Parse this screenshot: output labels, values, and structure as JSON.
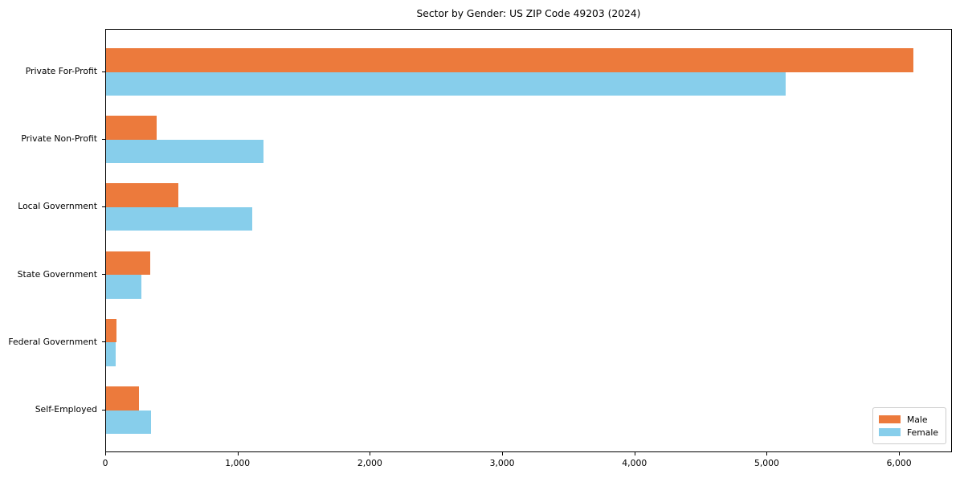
{
  "chart_data": {
    "type": "bar",
    "orientation": "horizontal",
    "title": "Sector by Gender: US ZIP Code 49203 (2024)",
    "categories": [
      "Private For-Profit",
      "Private Non-Profit",
      "Local Government",
      "State Government",
      "Federal Government",
      "Self-Employed"
    ],
    "series": [
      {
        "name": "Male",
        "color": "#ec7a3c",
        "values": [
          6100,
          380,
          545,
          335,
          80,
          250
        ]
      },
      {
        "name": "Female",
        "color": "#87ceeb",
        "values": [
          5140,
          1190,
          1105,
          270,
          70,
          340
        ]
      }
    ],
    "xlabel": "",
    "ylabel": "",
    "xlim": [
      0,
      6400
    ],
    "xticks": [
      0,
      1000,
      2000,
      3000,
      4000,
      5000,
      6000
    ],
    "xtick_labels": [
      "0",
      "1,000",
      "2,000",
      "3,000",
      "4,000",
      "5,000",
      "6,000"
    ],
    "grid": false,
    "legend": {
      "position": "lower-right",
      "entries": [
        "Male",
        "Female"
      ]
    }
  },
  "colors": {
    "background": "#ffffff",
    "frame": "#000000",
    "text": "#000000",
    "legend_border": "#cccccc",
    "male": "#ec7a3c",
    "female": "#87ceeb"
  }
}
